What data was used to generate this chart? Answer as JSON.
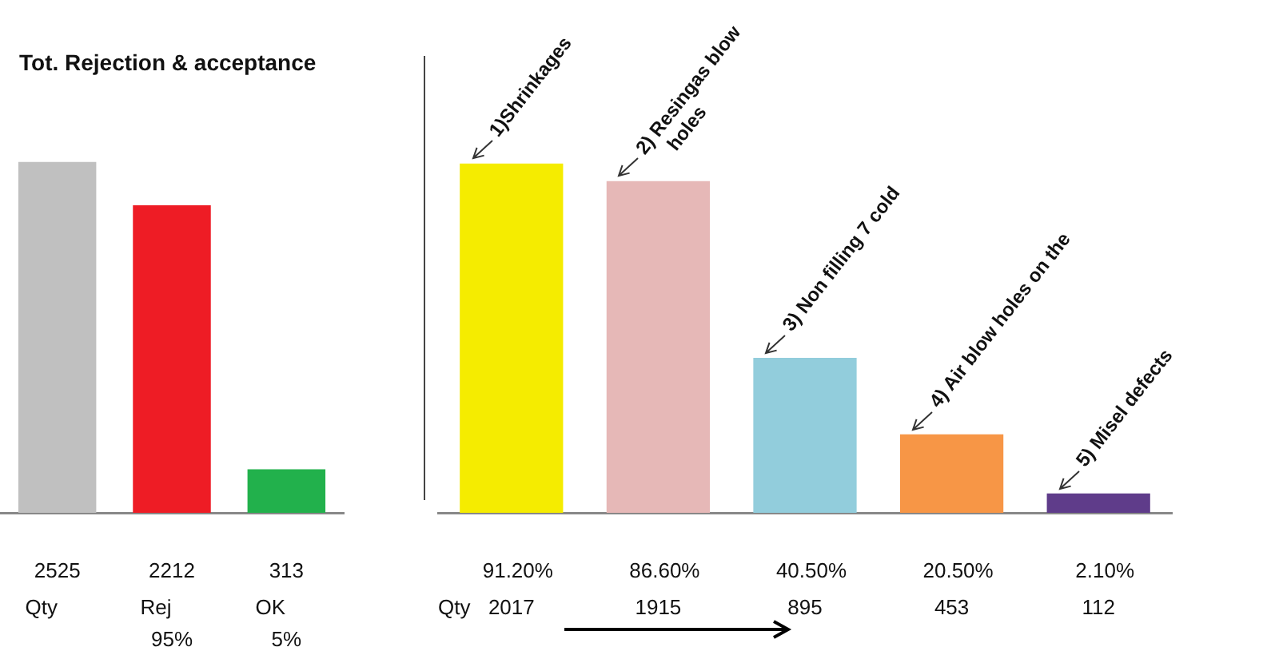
{
  "chart_data": [
    {
      "type": "bar",
      "title": "Tot. Rejection & acceptance",
      "categories": [
        "Qty",
        "Rej",
        "OK"
      ],
      "values": [
        2525,
        2212,
        313
      ],
      "colors": [
        "#c0c0c0",
        "#ee1c25",
        "#22b14c"
      ],
      "data_labels": true,
      "annotations": [
        "95%",
        "5%"
      ]
    },
    {
      "type": "bar",
      "categories": [
        "1)Shrinkages",
        "2) Resingas blow holes",
        "3) Non filling 7 cold",
        "4) Air blow holes on the",
        "5) Misel defects"
      ],
      "values": [
        2017,
        1915,
        895,
        453,
        112
      ],
      "colors": [
        "#f5ec00",
        "#e6b8b7",
        "#92cddc",
        "#f79646",
        "#5f3c8a"
      ],
      "data_labels": true,
      "annotations": [
        "Qty",
        "91.20%",
        "86.60%",
        "40.50%",
        "20.50%",
        "2.10%"
      ]
    }
  ]
}
